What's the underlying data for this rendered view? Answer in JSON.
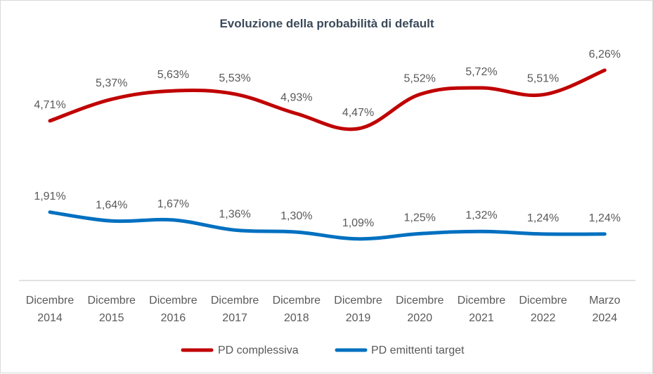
{
  "chart_data": {
    "type": "line",
    "title": "Evoluzione della probabilità di default",
    "categories": [
      [
        "Dicembre",
        "2014"
      ],
      [
        "Dicembre",
        "2015"
      ],
      [
        "Dicembre",
        "2016"
      ],
      [
        "Dicembre",
        "2017"
      ],
      [
        "Dicembre",
        "2018"
      ],
      [
        "Dicembre",
        "2019"
      ],
      [
        "Dicembre",
        "2020"
      ],
      [
        "Dicembre",
        "2021"
      ],
      [
        "Dicembre",
        "2022"
      ],
      [
        "Marzo",
        "2024"
      ]
    ],
    "series": [
      {
        "name": "PD complessiva",
        "color": "#c00000",
        "values": [
          4.71,
          5.37,
          5.63,
          5.53,
          4.93,
          4.47,
          5.52,
          5.72,
          5.51,
          6.26
        ],
        "labels": [
          "4,71%",
          "5,37%",
          "5,63%",
          "5,53%",
          "4,93%",
          "4,47%",
          "5,52%",
          "5,72%",
          "5,51%",
          "6,26%"
        ]
      },
      {
        "name": "PD emittenti target",
        "color": "#0070c0",
        "values": [
          1.91,
          1.64,
          1.67,
          1.36,
          1.3,
          1.09,
          1.25,
          1.32,
          1.24,
          1.24
        ],
        "labels": [
          "1,91%",
          "1,64%",
          "1,67%",
          "1,36%",
          "1,30%",
          "1,09%",
          "1,25%",
          "1,32%",
          "1,24%",
          "1,24%"
        ]
      }
    ],
    "xlabel": "",
    "ylabel": "",
    "ylim": [
      0,
      7
    ],
    "grid": false,
    "legend_position": "bottom"
  }
}
